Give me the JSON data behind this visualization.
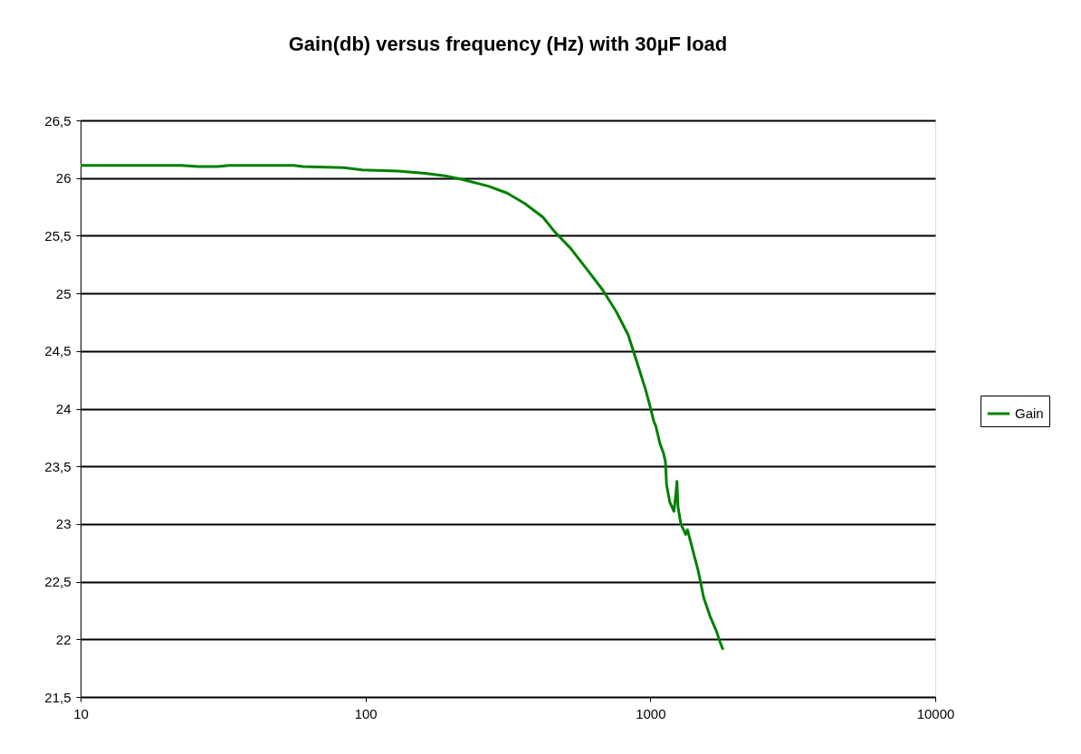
{
  "chart_data": {
    "type": "line",
    "title": "Gain(db) versus frequency (Hz) with 30µF load",
    "x": [
      10,
      22.5,
      26,
      30.3,
      33.2,
      56,
      60.4,
      84,
      97.5,
      130,
      162,
      190,
      217,
      270,
      314,
      362,
      420,
      463,
      525,
      607,
      680,
      760,
      836,
      898,
      961,
      1000,
      1028,
      1045,
      1080,
      1110,
      1130,
      1140,
      1170,
      1210,
      1230,
      1240,
      1250,
      1280,
      1330,
      1350,
      1400,
      1470,
      1540,
      1620,
      1700,
      1760,
      1800
    ],
    "series": [
      {
        "name": "Gain",
        "color": "#008000",
        "values": [
          26.11,
          26.11,
          26.1,
          26.1,
          26.11,
          26.11,
          26.1,
          26.09,
          26.07,
          26.06,
          26.04,
          26.02,
          25.99,
          25.93,
          25.87,
          25.78,
          25.66,
          25.53,
          25.39,
          25.19,
          25.03,
          24.84,
          24.64,
          24.4,
          24.17,
          24.01,
          23.89,
          23.85,
          23.7,
          23.62,
          23.54,
          23.34,
          23.19,
          23.11,
          23.27,
          23.37,
          23.15,
          23.0,
          22.91,
          22.95,
          22.8,
          22.6,
          22.36,
          22.2,
          22.08,
          21.97,
          21.91
        ]
      }
    ],
    "log": "x",
    "xlim": [
      10,
      10000
    ],
    "xticks": [
      10,
      100,
      1000,
      10000
    ],
    "ylim": [
      21.5,
      26.5
    ],
    "yticks": [
      {
        "value": 21.5,
        "label": "21,5"
      },
      {
        "value": 22,
        "label": "22"
      },
      {
        "value": 22.5,
        "label": "22,5"
      },
      {
        "value": 23,
        "label": "23"
      },
      {
        "value": 23.5,
        "label": "23,5"
      },
      {
        "value": 24,
        "label": "24"
      },
      {
        "value": 24.5,
        "label": "24,5"
      },
      {
        "value": 25,
        "label": "25"
      },
      {
        "value": 25.5,
        "label": "25,5"
      },
      {
        "value": 26,
        "label": "26"
      },
      {
        "value": 26.5,
        "label": "26,5"
      }
    ],
    "grid": "y",
    "legend": "right",
    "marker": "none",
    "line_style": "solid"
  }
}
